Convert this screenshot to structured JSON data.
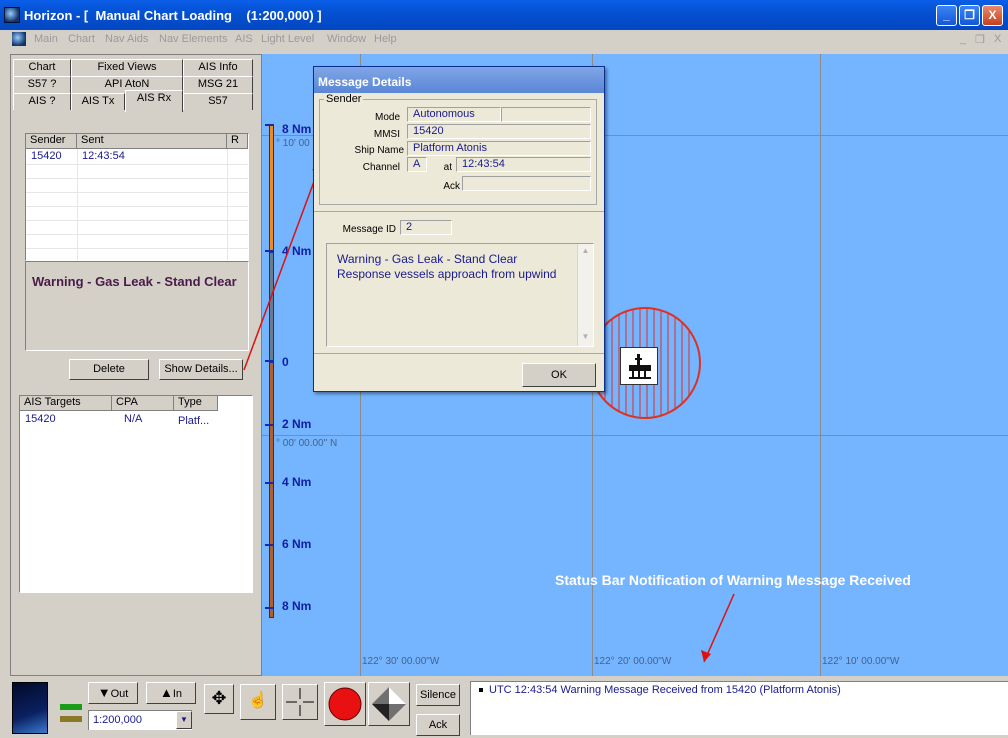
{
  "window": {
    "title": "Horizon - [  Manual Chart Loading    (1:200,000) ]",
    "minimize": "_",
    "restore": "❐",
    "close": "X"
  },
  "menu": [
    "Main",
    "Chart",
    "Nav Aids",
    "Nav Elements",
    "AIS",
    "Light Level",
    "Window",
    "Help"
  ],
  "mdi_controls": [
    "_",
    "❐",
    "X"
  ],
  "tabs": {
    "row1": [
      "Chart",
      "Fixed Views",
      "AIS Info"
    ],
    "row2": [
      "S57 ?",
      "API AtoN",
      "MSG 21"
    ],
    "row3": [
      "AIS ?",
      "AIS Tx",
      "AIS Rx",
      "S57"
    ],
    "active": "AIS Rx"
  },
  "messages_table": {
    "headers": [
      "Sender",
      "Sent",
      "R"
    ],
    "rows": [
      {
        "sender": "15420",
        "sent": "12:43:54",
        "r": ""
      }
    ]
  },
  "message_preview": "Warning - Gas Leak - Stand Clear",
  "buttons": {
    "delete": "Delete",
    "show_details": "Show Details..."
  },
  "targets_table": {
    "headers": [
      "AIS Targets",
      "CPA",
      "Type"
    ],
    "rows": [
      {
        "target": "15420",
        "cpa": "N/A",
        "type": "Platf..."
      }
    ]
  },
  "chart": {
    "scale_labels": [
      "8 Nm",
      "4 Nm",
      "0",
      "2 Nm",
      "4 Nm",
      "6 Nm",
      "8 Nm"
    ],
    "lat_labels": [
      "° 10' 00",
      "° 00' 00.00\" N"
    ],
    "lon_labels": [
      "122° 30' 00.00\"W",
      "122° 20' 00.00\"W",
      "122° 10' 00.00\"W"
    ],
    "annotation": "Status Bar Notification of Warning Message Received",
    "colors": {
      "sea": "#75b4ff",
      "zone": "#e03020",
      "arrow": "#dd1111"
    }
  },
  "dialog": {
    "title": "Message Details",
    "sender_group": "Sender",
    "labels": {
      "mode": "Mode",
      "mmsi": "MMSI",
      "ship_name": "Ship Name",
      "channel": "Channel",
      "at": "at",
      "ack": "Ack",
      "message_id": "Message ID"
    },
    "values": {
      "mode": "Autonomous",
      "mmsi": "15420",
      "ship_name": "Platform Atonis",
      "channel": "A",
      "time": "12:43:54",
      "ack": "",
      "message_id": "2"
    },
    "message_lines": [
      "Warning - Gas Leak - Stand Clear",
      "Response vessels approach from upwind"
    ],
    "ok": "OK"
  },
  "toolbar": {
    "out": "Out",
    "in": "In",
    "scale_value": "1:200,000",
    "silence": "Silence",
    "ack": "Ack"
  },
  "status_message": "UTC  12:43:54 Warning Message Received from 15420 (Platform Atonis)"
}
